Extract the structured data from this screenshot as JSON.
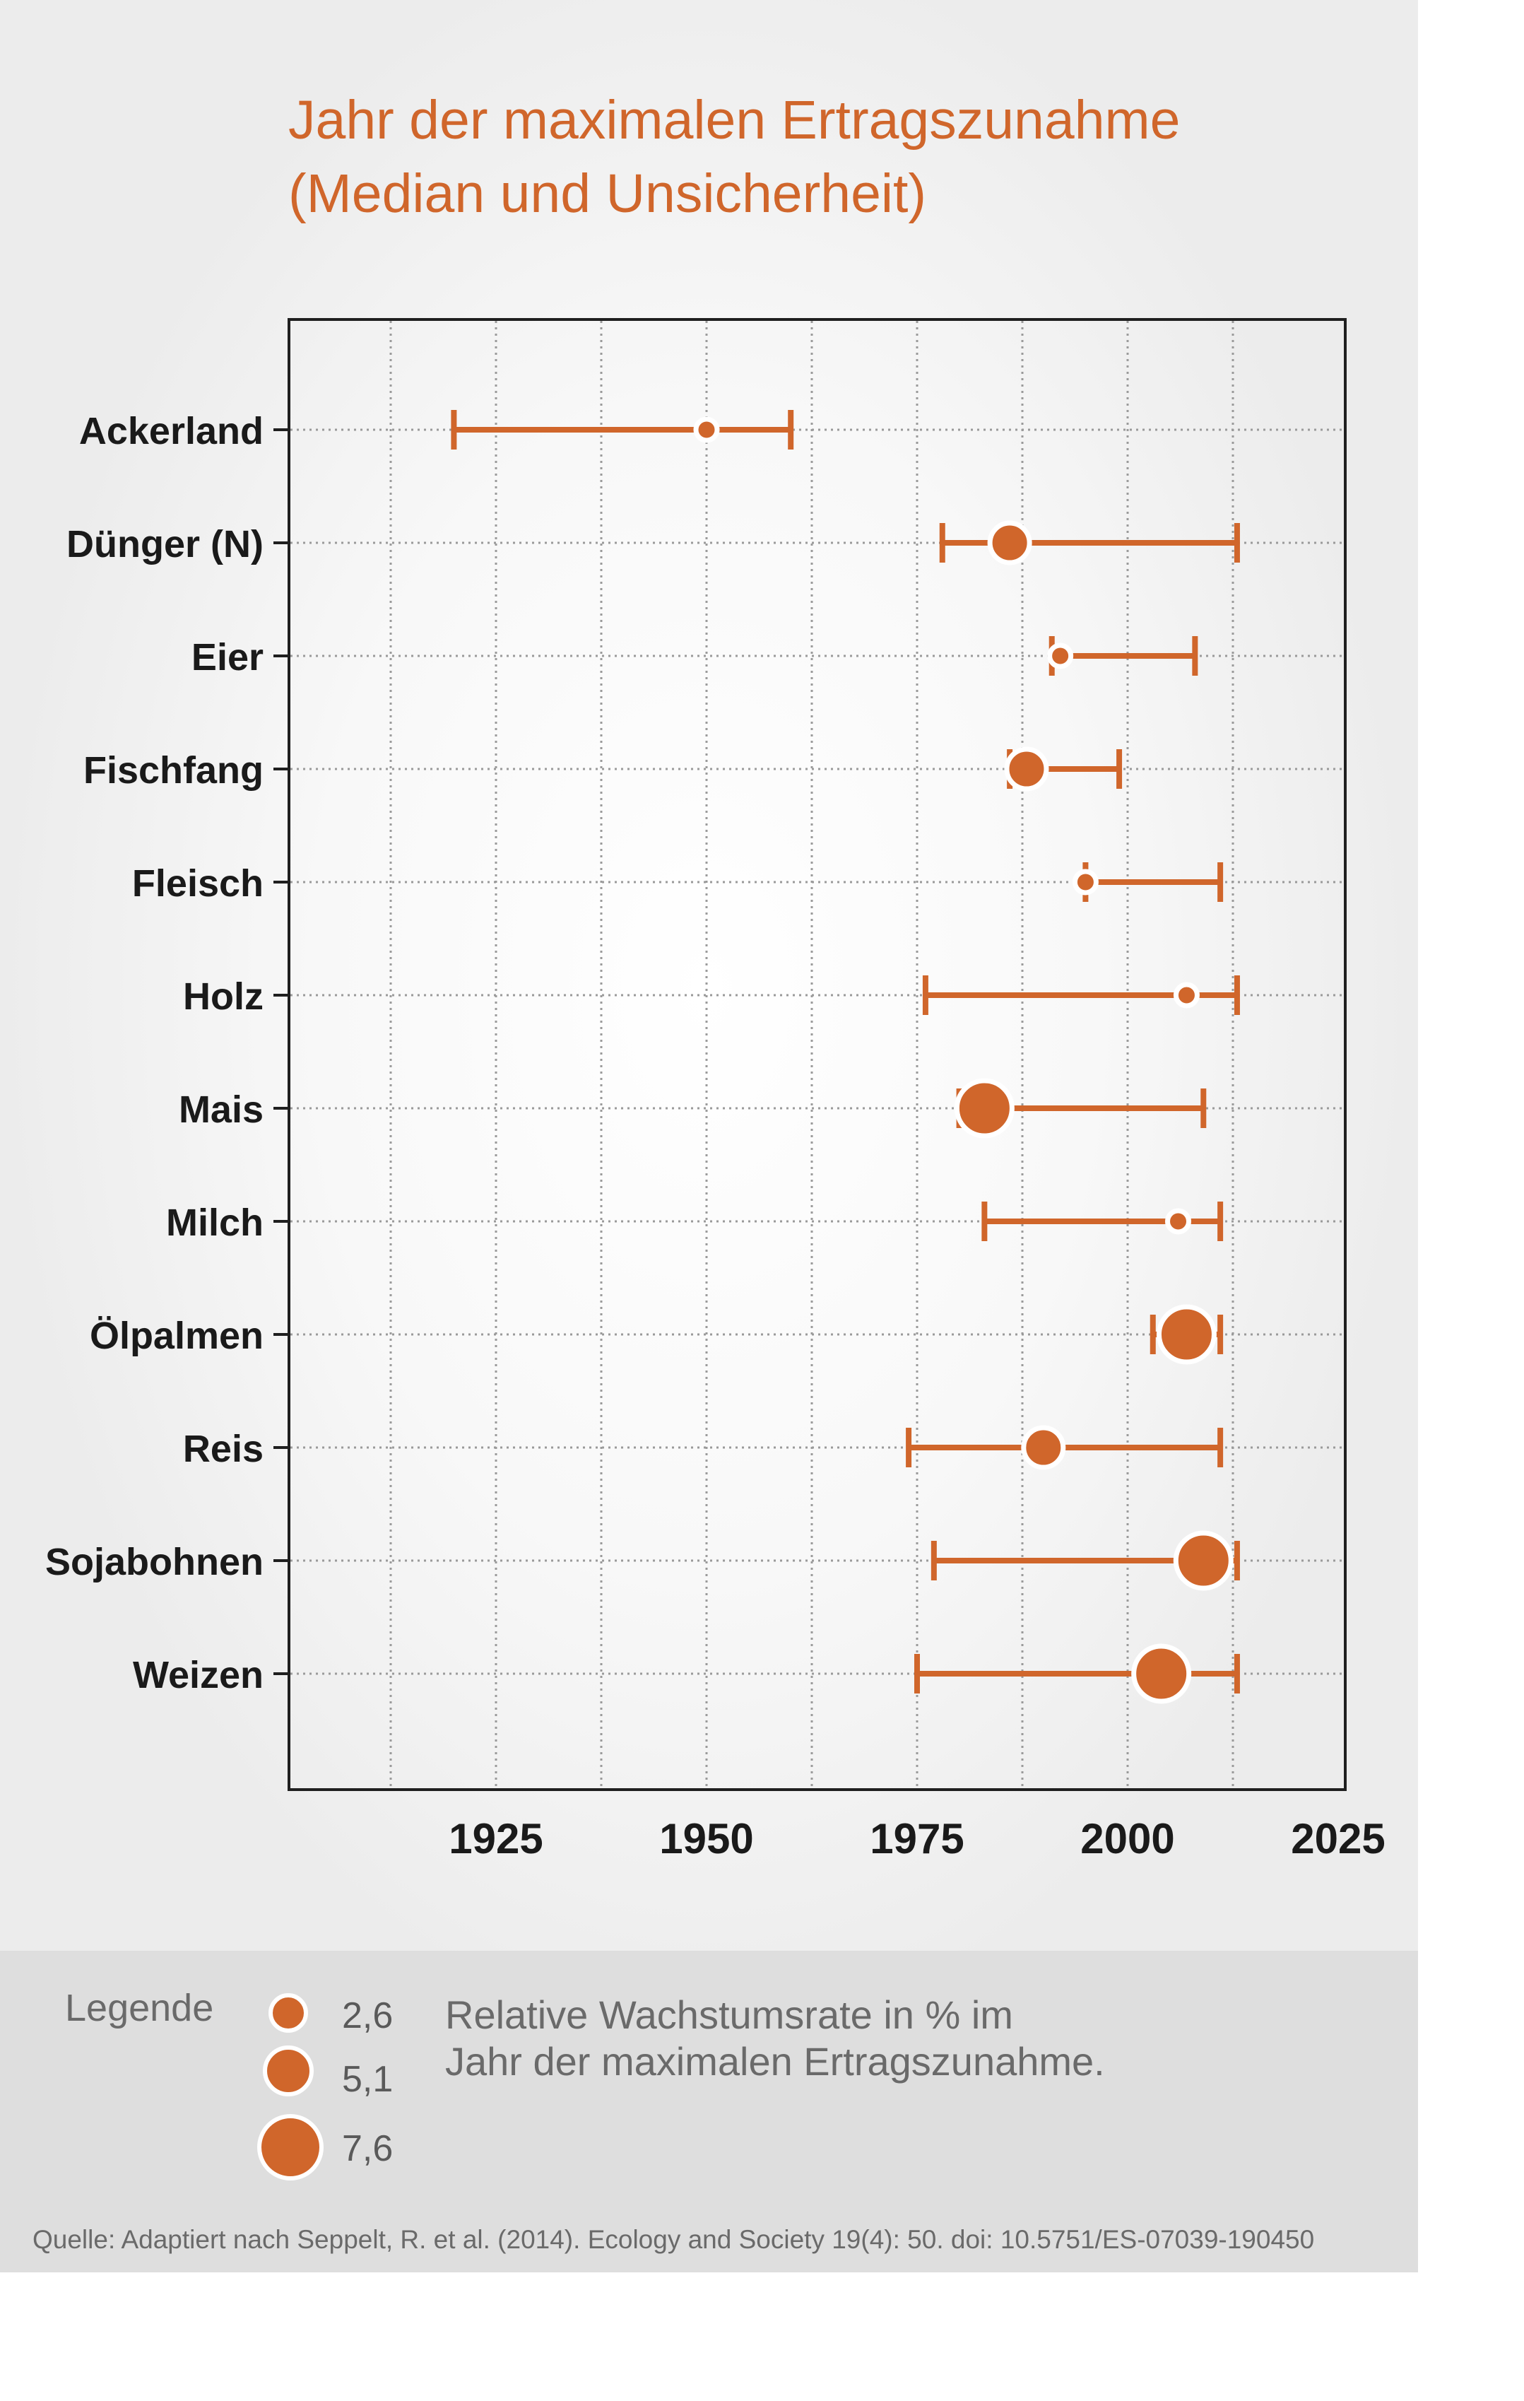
{
  "header": {
    "title_line1": "Jahr der maximalen Ertragszunahme",
    "title_line2": "(Median und Unsicherheit)"
  },
  "colors": {
    "accent": "#d0662b",
    "axis_text": "#1a1a1a",
    "grid": "#9a9a9a",
    "legend_bg": "#dedede"
  },
  "chart_data": {
    "type": "scatter",
    "title": "Jahr der maximalen Ertragszunahme (Median und Unsicherheit)",
    "xlabel": "",
    "ylabel": "",
    "xlim": [
      1900,
      2025
    ],
    "x_ticks": [
      "1925",
      "1950",
      "1975",
      "2000",
      "2025"
    ],
    "grid": true,
    "categories": [
      "Ackerland",
      "Dünger (N)",
      "Eier",
      "Fischfang",
      "Fleisch",
      "Holz",
      "Mais",
      "Milch",
      "Ölpalmen",
      "Reis",
      "Sojabohnen",
      "Weizen"
    ],
    "series": [
      {
        "median": [
          1950,
          1986,
          1992,
          1988,
          1995,
          2007,
          1983,
          2006,
          2007,
          1990,
          2009,
          2004
        ],
        "lower": [
          1920,
          1978,
          1991,
          1986,
          1995,
          1976,
          1980,
          1983,
          2003,
          1974,
          1977,
          1975
        ],
        "upper": [
          1960,
          2013,
          2008,
          1999,
          2011,
          2013,
          2009,
          2011,
          2011,
          2011,
          2013,
          2013
        ],
        "growth_rate_percent": [
          2.6,
          5.1,
          2.6,
          5.1,
          2.6,
          2.6,
          7.6,
          2.6,
          7.6,
          5.1,
          7.6,
          7.6
        ]
      }
    ]
  },
  "legend": {
    "title": "Legende",
    "items": [
      {
        "label": "2,6",
        "value": 2.6
      },
      {
        "label": "5,1",
        "value": 5.1
      },
      {
        "label": "7,6",
        "value": 7.6
      }
    ],
    "description_line1": "Relative Wachstumsrate in % im",
    "description_line2": "Jahr der maximalen Ertragszunahme."
  },
  "source": "Quelle: Adaptiert nach Seppelt, R. et al. (2014). Ecology and Society 19(4): 50. doi: 10.5751/ES-07039-190450"
}
